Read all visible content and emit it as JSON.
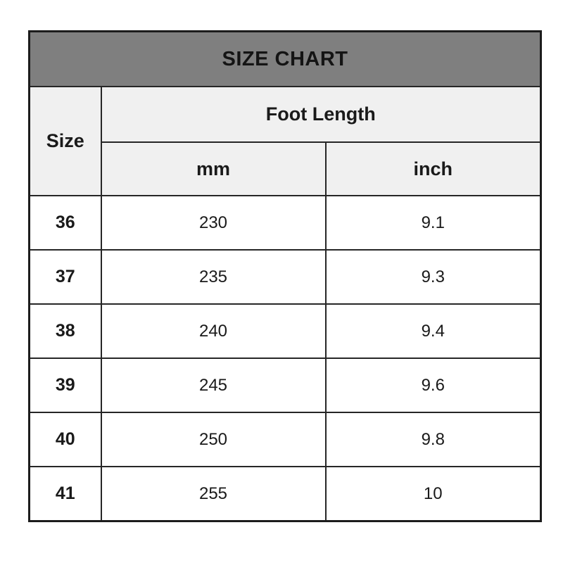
{
  "chart_data": {
    "type": "table",
    "title": "SIZE CHART",
    "column_groups": [
      {
        "label": "Size",
        "span": 1
      },
      {
        "label": "Foot Length",
        "span": 2
      }
    ],
    "columns": [
      "Size",
      "mm",
      "inch"
    ],
    "rows": [
      [
        36,
        230,
        9.1
      ],
      [
        37,
        235,
        9.3
      ],
      [
        38,
        240,
        9.4
      ],
      [
        39,
        245,
        9.6
      ],
      [
        40,
        250,
        9.8
      ],
      [
        41,
        255,
        10
      ]
    ]
  },
  "title": "SIZE CHART",
  "headers": {
    "size": "Size",
    "group": "Foot Length",
    "mm": "mm",
    "inch": "inch"
  },
  "rows": [
    {
      "size": "36",
      "mm": "230",
      "inch": "9.1"
    },
    {
      "size": "37",
      "mm": "235",
      "inch": "9.3"
    },
    {
      "size": "38",
      "mm": "240",
      "inch": "9.4"
    },
    {
      "size": "39",
      "mm": "245",
      "inch": "9.6"
    },
    {
      "size": "40",
      "mm": "250",
      "inch": "9.8"
    },
    {
      "size": "41",
      "mm": "255",
      "inch": "10"
    }
  ],
  "colors": {
    "title_bar_bg": "#7f7f7f",
    "header_bg": "#f0f0f0",
    "body_bg": "#ffffff",
    "border": "#262626",
    "text": "#1a1a1a"
  }
}
